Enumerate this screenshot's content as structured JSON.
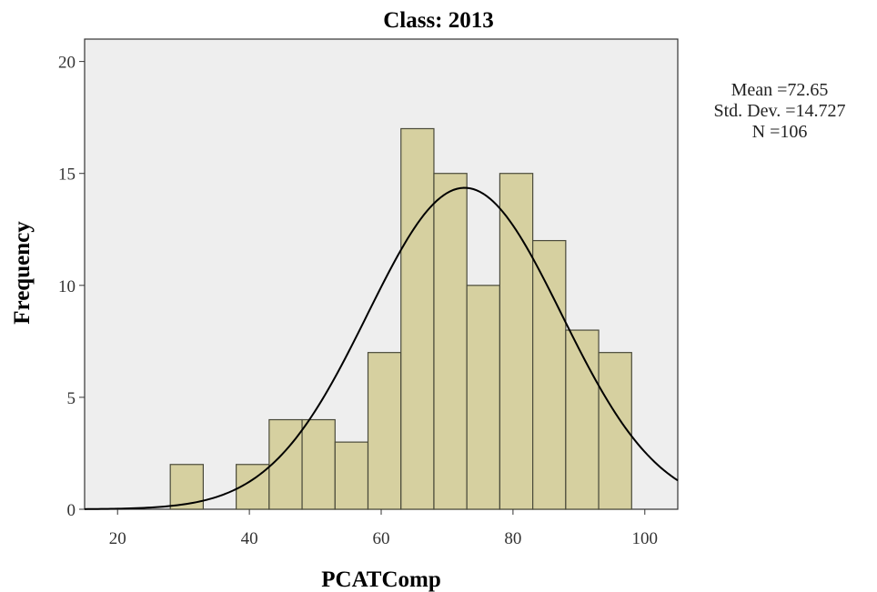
{
  "chart_data": {
    "type": "bar",
    "title": "Class: 2013",
    "xlabel": "PCATComp",
    "ylabel": "Frequency",
    "xlim": [
      15,
      105
    ],
    "ylim": [
      0,
      21
    ],
    "xticks": [
      20,
      40,
      60,
      80,
      100
    ],
    "yticks": [
      0,
      5,
      10,
      15,
      20
    ],
    "bin_width": 5,
    "bins": [
      {
        "start": 28,
        "end": 33,
        "count": 2
      },
      {
        "start": 38,
        "end": 43,
        "count": 2
      },
      {
        "start": 43,
        "end": 48,
        "count": 4
      },
      {
        "start": 48,
        "end": 53,
        "count": 4
      },
      {
        "start": 53,
        "end": 58,
        "count": 3
      },
      {
        "start": 58,
        "end": 63,
        "count": 7
      },
      {
        "start": 63,
        "end": 68,
        "count": 17
      },
      {
        "start": 68,
        "end": 73,
        "count": 15
      },
      {
        "start": 73,
        "end": 78,
        "count": 10
      },
      {
        "start": 78,
        "end": 83,
        "count": 15
      },
      {
        "start": 83,
        "end": 88,
        "count": 12
      },
      {
        "start": 88,
        "end": 93,
        "count": 8
      },
      {
        "start": 93,
        "end": 98,
        "count": 7
      }
    ],
    "normal_curve": {
      "mean": 72.65,
      "std": 14.727,
      "n": 106
    },
    "grid": false,
    "colors": {
      "bar_fill": "#d6d0a0",
      "bar_stroke": "#4a4a3a",
      "plot_bg": "#eeeeee",
      "curve": "#000000"
    }
  },
  "stats": {
    "mean_text": "Mean =72.65",
    "std_text": "Std. Dev. =14.727",
    "n_text": "N =106"
  }
}
